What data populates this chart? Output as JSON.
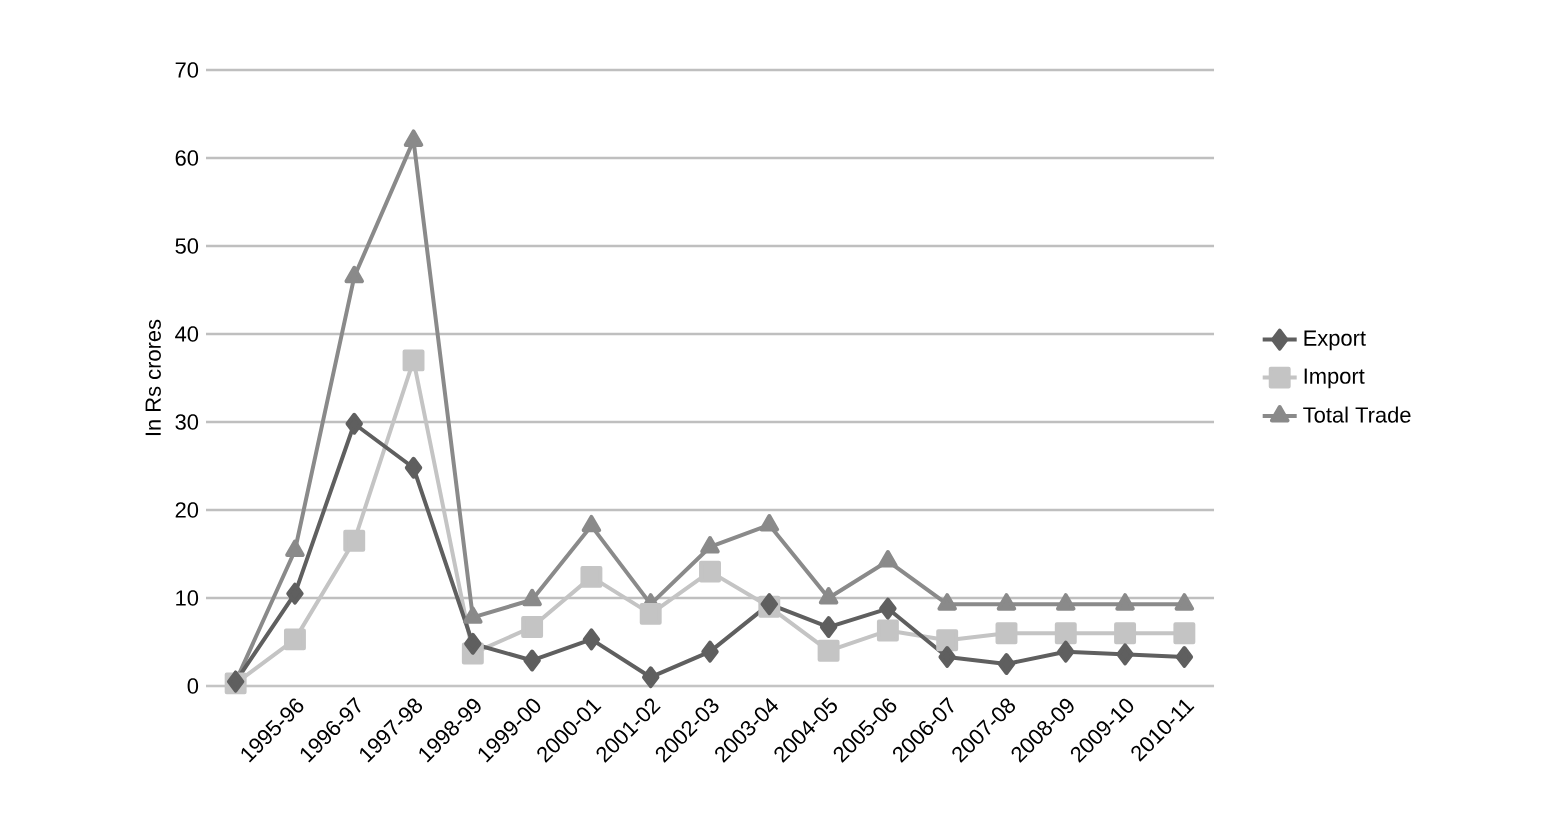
{
  "chart_data": {
    "type": "line",
    "ylabel": "In Rs crores",
    "categories": [
      null,
      "1995-96",
      "1996-97",
      "1997-98",
      "1998-99",
      "1999-00",
      "2000-01",
      "2001-02",
      "2002-03",
      "2003-04",
      "2004-05",
      "2005-06",
      "2006-07",
      "2007-08",
      "2008-09",
      "2009-10",
      "2010-11"
    ],
    "series": [
      {
        "name": "Export",
        "color": "#5f5f5f",
        "marker": "diamond",
        "values": [
          0.5,
          10.5,
          29.8,
          24.8,
          4.8,
          2.9,
          5.3,
          1.0,
          3.9,
          9.3,
          6.7,
          8.8,
          3.3,
          2.5,
          3.9,
          3.6,
          3.3
        ]
      },
      {
        "name": "Import",
        "color": "#c4c4c4",
        "marker": "square",
        "values": [
          0.3,
          5.3,
          16.5,
          37,
          3.7,
          6.7,
          12.4,
          8.2,
          13,
          9,
          4,
          6.3,
          5.2,
          6,
          6,
          6,
          6
        ]
      },
      {
        "name": "Total Trade",
        "color": "#8a8a8a",
        "marker": "triangle",
        "values": [
          0.5,
          15.4,
          46.5,
          62,
          7.8,
          9.8,
          18.2,
          9.3,
          15.8,
          18.3,
          10,
          14.2,
          9.3,
          9.3,
          9.3,
          9.3,
          9.3
        ]
      }
    ],
    "ylim": [
      0,
      70
    ],
    "yticks": [
      0,
      10,
      20,
      30,
      40,
      50,
      60,
      70
    ],
    "grid": "y",
    "legend": "right"
  }
}
